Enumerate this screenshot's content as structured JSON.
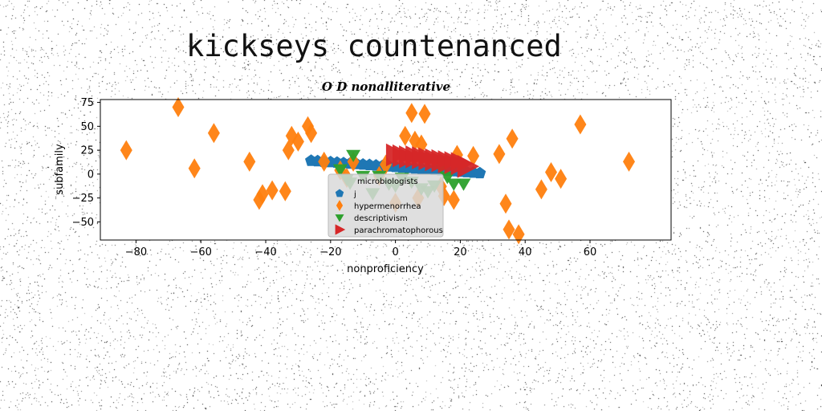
{
  "page": {
    "heading": "kickseys countenanced"
  },
  "chart_data": {
    "type": "scatter",
    "title": "O D nonalliterative",
    "xlabel": "nonproficiency",
    "ylabel": "subfamily",
    "xlim": [
      -91,
      85
    ],
    "ylim": [
      -69,
      78
    ],
    "xticks": [
      -80,
      -60,
      -40,
      -20,
      0,
      20,
      40,
      60
    ],
    "yticks": [
      75,
      50,
      25,
      0,
      -25,
      -50
    ],
    "grid": false,
    "legend": {
      "placement": "lower-center",
      "title": "microbiologists"
    },
    "series": [
      {
        "name": "j",
        "marker": "pentagon",
        "color": "#1f77b4",
        "x": [
          -26,
          -24,
          -22,
          -20,
          -18,
          -16,
          -14,
          -12,
          -10,
          -8,
          -6,
          -4,
          -2,
          0,
          2,
          4,
          6,
          8,
          10,
          12,
          14,
          16,
          18,
          20,
          22,
          24,
          26
        ],
        "y": [
          14,
          13.5,
          13,
          12.5,
          12,
          11.5,
          11,
          10.5,
          10,
          9.5,
          9,
          8.5,
          8,
          7.5,
          7,
          6.5,
          6,
          5.5,
          5,
          4.5,
          4,
          3.5,
          3,
          2.5,
          2,
          1.5,
          1
        ]
      },
      {
        "name": "hypermenorrhea",
        "marker": "thin_diamond",
        "color": "#ff7f0e",
        "x": [
          -83,
          -67,
          -62,
          -56,
          -45,
          -42,
          -41,
          -38,
          -34,
          -33,
          -32,
          -30,
          -27,
          -26,
          -22,
          -17,
          -15,
          -13,
          -5,
          -3,
          0,
          3,
          5,
          6,
          7,
          8,
          9,
          14,
          15,
          18,
          19,
          24,
          32,
          34,
          35,
          36,
          38,
          45,
          48,
          51,
          57,
          72
        ],
        "y": [
          25,
          70,
          6,
          43,
          13,
          -27,
          -21,
          -17,
          -18,
          25,
          40,
          34,
          50,
          43,
          13,
          4,
          -4,
          13,
          -2,
          10,
          -30,
          40,
          64,
          35,
          -25,
          31,
          63,
          -13,
          -23,
          -27,
          20,
          19,
          21,
          -31,
          -58,
          37,
          -63,
          -16,
          2,
          -5,
          52,
          13
        ]
      },
      {
        "name": "descriptivism",
        "marker": "triangle_down",
        "color": "#2ca02c",
        "x": [
          -17,
          -15,
          -14,
          -13,
          -10,
          -7,
          -5,
          -2,
          0,
          2,
          5,
          8,
          10,
          12,
          14,
          16,
          18,
          21
        ],
        "y": [
          5,
          -5,
          -9,
          20,
          -2,
          -20,
          -2,
          -10,
          -12,
          -4,
          -8,
          -15,
          -18,
          -12,
          7,
          -3,
          -10,
          -10
        ]
      },
      {
        "name": "parachromatophorous",
        "marker": "triangle_right",
        "color": "#d62728",
        "x": [
          0,
          2,
          4,
          6,
          8,
          10,
          12,
          14,
          16,
          18,
          20,
          22
        ],
        "y": [
          20,
          19,
          18,
          18,
          17,
          16,
          15,
          14,
          13,
          12,
          11,
          8
        ]
      }
    ]
  }
}
